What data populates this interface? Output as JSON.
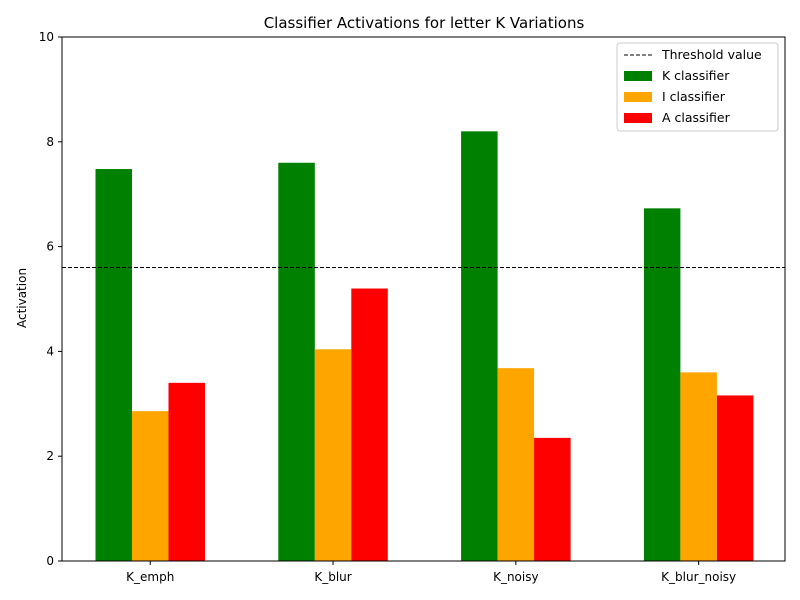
{
  "chart_data": {
    "type": "bar",
    "title": "Classifier Activations for letter K Variations",
    "xlabel": "",
    "ylabel": "Activation",
    "categories": [
      "K_emph",
      "K_blur",
      "K_noisy",
      "K_blur_noisy"
    ],
    "series": [
      {
        "name": "K classifier",
        "color": "#008000",
        "values": [
          7.48,
          7.6,
          8.2,
          6.73
        ]
      },
      {
        "name": "I classifier",
        "color": "#ffa500",
        "values": [
          2.86,
          4.04,
          3.68,
          3.6
        ]
      },
      {
        "name": "A classifier",
        "color": "#ff0000",
        "values": [
          3.4,
          5.2,
          2.35,
          3.16
        ]
      }
    ],
    "threshold": {
      "label": "Threshold value",
      "value": 5.6,
      "style": "dashed",
      "color": "#000000"
    },
    "ylim": [
      0,
      10
    ],
    "yticks": [
      0,
      2,
      4,
      6,
      8,
      10
    ],
    "grid": false,
    "legend_position": "top-right"
  }
}
